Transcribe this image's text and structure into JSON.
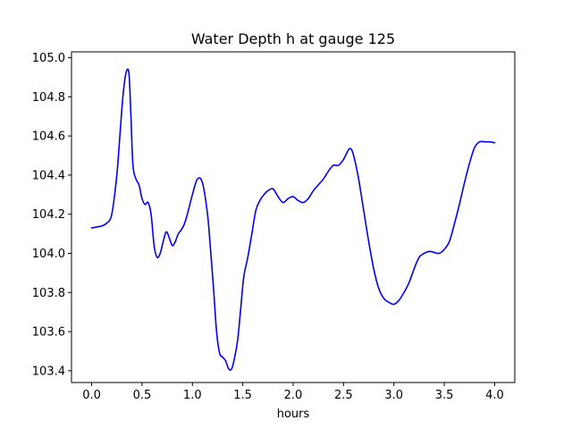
{
  "chart_data": {
    "type": "line",
    "title": "Water Depth h at gauge 125",
    "xlabel": "hours",
    "ylabel": "",
    "xlim": [
      -0.2,
      4.2
    ],
    "ylim": [
      103.34,
      105.03
    ],
    "xticks": [
      0.0,
      0.5,
      1.0,
      1.5,
      2.0,
      2.5,
      3.0,
      3.5,
      4.0
    ],
    "xtick_labels": [
      "0.0",
      "0.5",
      "1.0",
      "1.5",
      "2.0",
      "2.5",
      "3.0",
      "3.5",
      "4.0"
    ],
    "yticks": [
      103.4,
      103.6,
      103.8,
      104.0,
      104.2,
      104.4,
      104.6,
      104.8,
      105.0
    ],
    "ytick_labels": [
      "103.4",
      "103.6",
      "103.8",
      "104.0",
      "104.2",
      "104.4",
      "104.6",
      "104.8",
      "105.0"
    ],
    "grid": false,
    "series": [
      {
        "color": "#0000ff",
        "x": [
          0.0,
          0.05,
          0.1,
          0.15,
          0.2,
          0.25,
          0.28,
          0.31,
          0.34,
          0.37,
          0.39,
          0.41,
          0.44,
          0.47,
          0.5,
          0.53,
          0.56,
          0.59,
          0.62,
          0.65,
          0.68,
          0.71,
          0.74,
          0.77,
          0.8,
          0.83,
          0.86,
          0.89,
          0.92,
          0.95,
          1.0,
          1.05,
          1.1,
          1.15,
          1.18,
          1.21,
          1.24,
          1.27,
          1.3,
          1.33,
          1.36,
          1.39,
          1.42,
          1.45,
          1.48,
          1.51,
          1.55,
          1.59,
          1.63,
          1.67,
          1.71,
          1.75,
          1.8,
          1.85,
          1.9,
          1.95,
          2.0,
          2.05,
          2.1,
          2.15,
          2.2,
          2.25,
          2.3,
          2.35,
          2.4,
          2.45,
          2.5,
          2.55,
          2.58,
          2.61,
          2.65,
          2.7,
          2.75,
          2.8,
          2.85,
          2.9,
          2.95,
          3.0,
          3.05,
          3.1,
          3.15,
          3.2,
          3.25,
          3.3,
          3.35,
          3.4,
          3.45,
          3.5,
          3.55,
          3.6,
          3.65,
          3.7,
          3.75,
          3.8,
          3.85,
          3.9,
          3.95,
          4.0
        ],
        "y": [
          104.13,
          104.135,
          104.14,
          104.155,
          104.2,
          104.4,
          104.6,
          104.8,
          104.92,
          104.92,
          104.7,
          104.45,
          104.38,
          104.35,
          104.28,
          104.25,
          104.26,
          104.2,
          104.04,
          103.98,
          104.0,
          104.06,
          104.11,
          104.08,
          104.04,
          104.06,
          104.1,
          104.12,
          104.15,
          104.2,
          104.3,
          104.38,
          104.36,
          104.2,
          104.02,
          103.82,
          103.6,
          103.49,
          103.47,
          103.45,
          103.41,
          103.41,
          103.47,
          103.56,
          103.72,
          103.88,
          103.98,
          104.1,
          104.22,
          104.27,
          104.3,
          104.32,
          104.33,
          104.29,
          104.26,
          104.28,
          104.29,
          104.27,
          104.26,
          104.28,
          104.32,
          104.35,
          104.38,
          104.42,
          104.45,
          104.45,
          104.48,
          104.53,
          104.53,
          104.48,
          104.38,
          104.22,
          104.06,
          103.92,
          103.82,
          103.77,
          103.75,
          103.74,
          103.76,
          103.8,
          103.85,
          103.92,
          103.98,
          104.0,
          104.01,
          104.005,
          104.0,
          104.02,
          104.06,
          104.15,
          104.25,
          104.36,
          104.46,
          104.54,
          104.57,
          104.57,
          104.57,
          104.565
        ]
      }
    ]
  }
}
